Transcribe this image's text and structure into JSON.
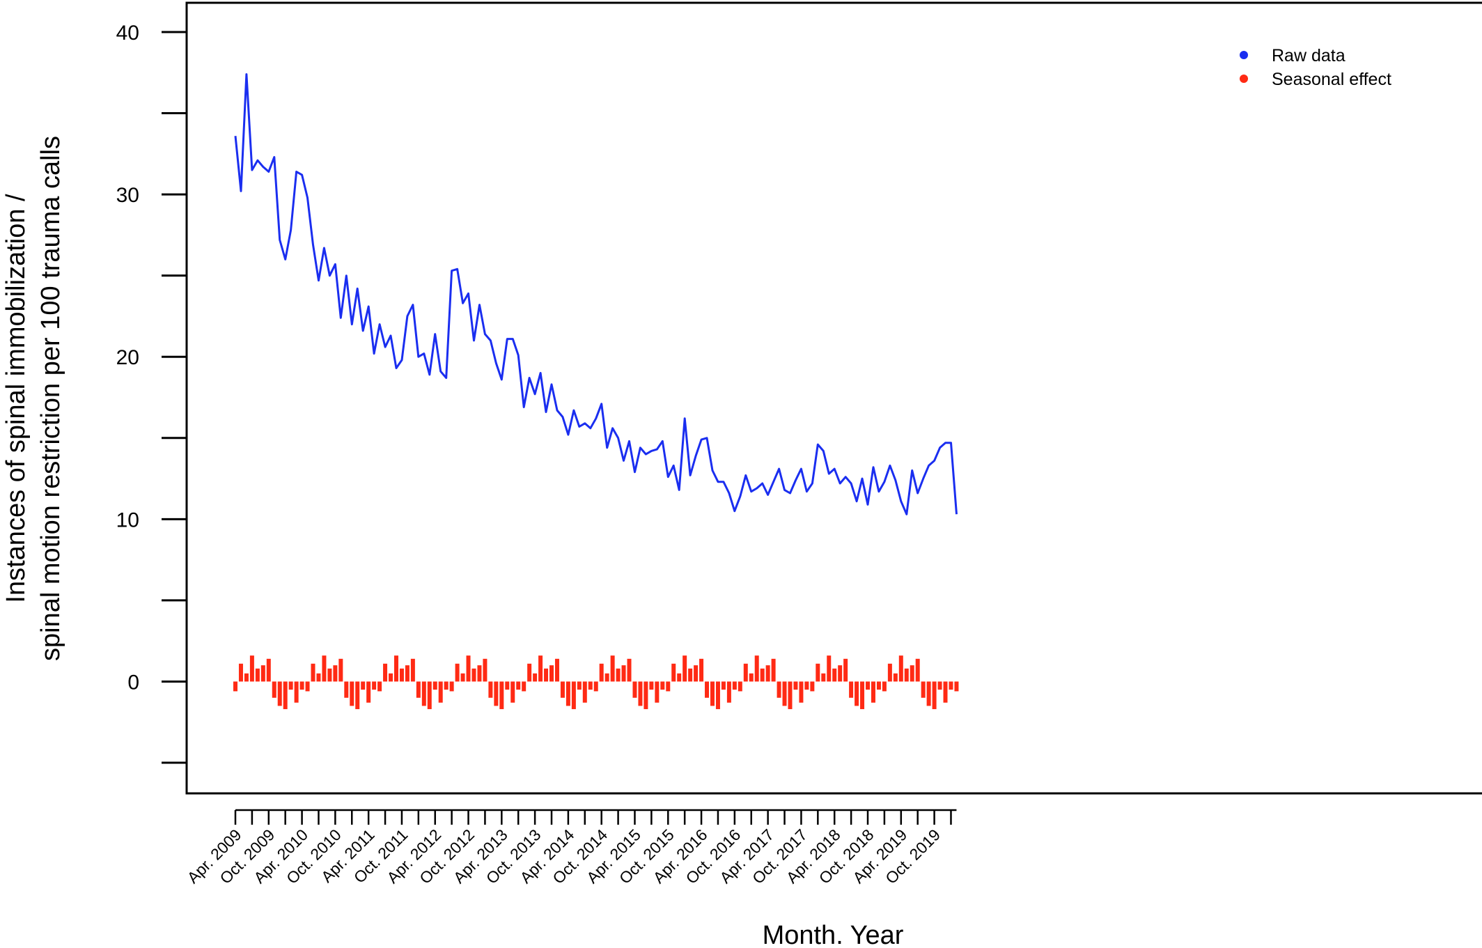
{
  "chart_data": {
    "type": "line",
    "xlabel": "Month. Year",
    "ylabel_line1": "Instances of spinal immobilization /",
    "ylabel_line2": "spinal motion restriction per 100 trauma calls",
    "ylim": [
      -5,
      40
    ],
    "yticks": [
      0,
      10,
      20,
      30,
      40
    ],
    "grid": false,
    "legend_position": "top-right",
    "x_start": "Apr. 2009",
    "x_tick_labels": [
      "Apr. 2009",
      "Oct. 2009",
      "Apr. 2010",
      "Oct. 2010",
      "Apr. 2011",
      "Oct. 2011",
      "Apr. 2012",
      "Oct. 2012",
      "Apr. 2013",
      "Oct. 2013",
      "Apr. 2014",
      "Oct. 2014",
      "Apr. 2015",
      "Oct. 2015",
      "Apr. 2016",
      "Oct. 2016",
      "Apr. 2017",
      "Oct. 2017",
      "Apr. 2018",
      "Oct. 2018",
      "Apr. 2019",
      "Oct. 2019"
    ],
    "series": [
      {
        "name": "Raw data",
        "color": "#1a2ef0",
        "style": "line",
        "values": [
          33.6,
          30.2,
          37.4,
          31.5,
          32.1,
          31.7,
          31.4,
          32.3,
          27.2,
          26.0,
          27.8,
          31.4,
          31.2,
          29.8,
          26.9,
          24.7,
          26.7,
          25.0,
          25.7,
          22.4,
          25.0,
          22.0,
          24.2,
          21.6,
          23.1,
          20.2,
          22.0,
          20.6,
          21.3,
          19.3,
          19.8,
          22.5,
          23.2,
          20.0,
          20.2,
          18.9,
          21.4,
          19.1,
          18.7,
          25.3,
          25.4,
          23.3,
          23.9,
          21.0,
          23.2,
          21.4,
          21.0,
          19.6,
          18.6,
          21.1,
          21.1,
          20.1,
          16.9,
          18.7,
          17.7,
          19.0,
          16.6,
          18.3,
          16.7,
          16.3,
          15.2,
          16.7,
          15.7,
          15.9,
          15.6,
          16.2,
          17.1,
          14.4,
          15.6,
          15.0,
          13.6,
          14.8,
          12.9,
          14.4,
          14.0,
          14.2,
          14.3,
          14.8,
          12.6,
          13.3,
          11.8,
          16.2,
          12.7,
          13.9,
          14.9,
          15.0,
          13.0,
          12.3,
          12.3,
          11.6,
          10.5,
          11.4,
          12.7,
          11.7,
          11.9,
          12.2,
          11.5,
          12.3,
          13.1,
          11.8,
          11.6,
          12.4,
          13.1,
          11.7,
          12.2,
          14.6,
          14.2,
          12.8,
          13.1,
          12.2,
          12.6,
          12.2,
          11.1,
          12.5,
          10.9,
          13.2,
          11.7,
          12.3,
          13.3,
          12.4,
          11.1,
          10.3,
          13.0,
          11.6,
          12.5,
          13.3,
          13.6,
          14.4,
          14.7,
          14.7,
          10.3
        ]
      },
      {
        "name": "Seasonal effect",
        "color": "#ff2a14",
        "style": "bars",
        "pattern": [
          -0.6,
          1.1,
          0.5,
          1.6,
          0.8,
          1.0,
          1.4,
          -1.0,
          -1.5,
          -1.7,
          -0.5,
          -1.3,
          -0.5
        ]
      }
    ]
  }
}
